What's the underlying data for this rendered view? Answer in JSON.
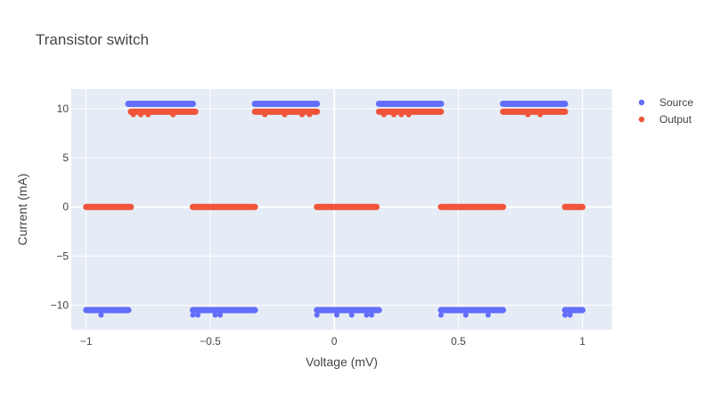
{
  "chart_data": {
    "type": "scatter",
    "title": "Transistor switch",
    "xlabel": "Voltage (mV)",
    "ylabel": "Current (mA)",
    "xlim": [
      -1.06,
      1.12
    ],
    "ylim": [
      -12.5,
      12
    ],
    "xticks": [
      -1,
      -0.5,
      0,
      0.5,
      1
    ],
    "xtick_labels": [
      "−1",
      "−0.5",
      "0",
      "0.5",
      "1"
    ],
    "yticks": [
      -10,
      -5,
      0,
      5,
      10
    ],
    "ytick_labels": [
      "−10",
      "−5",
      "0",
      "5",
      "10"
    ],
    "grid": true,
    "legend_position": "top-right",
    "background": "#e5ecf6",
    "series": [
      {
        "name": "Source",
        "color": "#636efa",
        "segments": [
          {
            "x0": -1.0,
            "x1": -0.83,
            "y": -10.5
          },
          {
            "x0": -0.83,
            "x1": -0.57,
            "y": 10.5
          },
          {
            "x0": -0.57,
            "x1": -0.32,
            "y": -10.5
          },
          {
            "x0": -0.32,
            "x1": -0.07,
            "y": 10.5
          },
          {
            "x0": -0.07,
            "x1": 0.18,
            "y": -10.5
          },
          {
            "x0": 0.18,
            "x1": 0.43,
            "y": 10.5
          },
          {
            "x0": 0.43,
            "x1": 0.68,
            "y": -10.5
          },
          {
            "x0": 0.68,
            "x1": 0.93,
            "y": 10.5
          },
          {
            "x0": 0.93,
            "x1": 1.0,
            "y": -10.5
          }
        ],
        "outliers": [
          {
            "x": -0.94,
            "y": -11.0
          },
          {
            "x": -0.57,
            "y": -11.0
          },
          {
            "x": -0.55,
            "y": -11.0
          },
          {
            "x": -0.48,
            "y": -11.0
          },
          {
            "x": -0.46,
            "y": -11.0
          },
          {
            "x": -0.07,
            "y": -11.0
          },
          {
            "x": 0.01,
            "y": -11.0
          },
          {
            "x": 0.07,
            "y": -11.0
          },
          {
            "x": 0.13,
            "y": -11.0
          },
          {
            "x": 0.15,
            "y": -11.0
          },
          {
            "x": 0.43,
            "y": -11.0
          },
          {
            "x": 0.53,
            "y": -11.0
          },
          {
            "x": 0.62,
            "y": -11.0
          },
          {
            "x": 0.93,
            "y": -11.0
          },
          {
            "x": 0.95,
            "y": -11.0
          }
        ]
      },
      {
        "name": "Output",
        "color": "#ef553b",
        "segments": [
          {
            "x0": -1.0,
            "x1": -0.82,
            "y": 0
          },
          {
            "x0": -0.82,
            "x1": -0.56,
            "y": 9.7
          },
          {
            "x0": -0.57,
            "x1": -0.32,
            "y": 0
          },
          {
            "x0": -0.32,
            "x1": -0.07,
            "y": 9.7
          },
          {
            "x0": -0.07,
            "x1": 0.17,
            "y": 0
          },
          {
            "x0": 0.18,
            "x1": 0.43,
            "y": 9.7
          },
          {
            "x0": 0.43,
            "x1": 0.68,
            "y": 0
          },
          {
            "x0": 0.68,
            "x1": 0.93,
            "y": 9.7
          },
          {
            "x0": 0.93,
            "x1": 1.0,
            "y": 0
          }
        ],
        "outliers": [
          {
            "x": -0.81,
            "y": 9.4
          },
          {
            "x": -0.78,
            "y": 9.4
          },
          {
            "x": -0.75,
            "y": 9.4
          },
          {
            "x": -0.65,
            "y": 9.4
          },
          {
            "x": -0.28,
            "y": 9.4
          },
          {
            "x": -0.2,
            "y": 9.4
          },
          {
            "x": -0.13,
            "y": 9.4
          },
          {
            "x": -0.1,
            "y": 9.4
          },
          {
            "x": 0.2,
            "y": 9.4
          },
          {
            "x": 0.24,
            "y": 9.4
          },
          {
            "x": 0.27,
            "y": 9.4
          },
          {
            "x": 0.3,
            "y": 9.4
          },
          {
            "x": 0.78,
            "y": 9.4
          },
          {
            "x": 0.83,
            "y": 9.4
          }
        ]
      }
    ]
  }
}
